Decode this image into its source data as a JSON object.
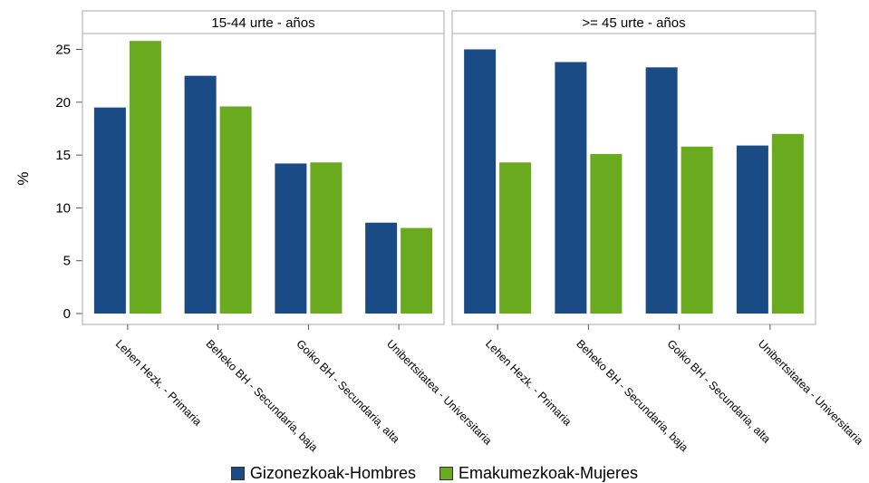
{
  "chart_data": {
    "type": "bar",
    "ylabel": "%",
    "ylim": [
      0,
      26.5
    ],
    "yticks": [
      0,
      5,
      10,
      15,
      20,
      25
    ],
    "categories": [
      "Lehen Hezk. - Primaria",
      "Beheko BH - Secundaria, baja",
      "Goiko BH - Secundaria, alta",
      "Unibertsitatea - Universitaria"
    ],
    "panels": [
      {
        "title": "15-44 urte - años",
        "series": [
          {
            "name": "Gizonezkoak-Hombres",
            "values": [
              19.5,
              22.5,
              14.2,
              8.6
            ]
          },
          {
            "name": "Emakumezkoak-Mujeres",
            "values": [
              25.8,
              19.6,
              14.3,
              8.1
            ]
          }
        ]
      },
      {
        "title": ">= 45 urte - años",
        "series": [
          {
            "name": "Gizonezkoak-Hombres",
            "values": [
              25.0,
              23.8,
              23.3,
              15.9
            ]
          },
          {
            "name": "Emakumezkoak-Mujeres",
            "values": [
              14.3,
              15.1,
              15.8,
              17.0
            ]
          }
        ]
      }
    ],
    "legend": {
      "position": "bottom",
      "entries": [
        "Gizonezkoak-Hombres",
        "Emakumezkoak-Mujeres"
      ]
    },
    "colors": [
      "#1a4b85",
      "#6aaa1f"
    ],
    "grid": false
  }
}
